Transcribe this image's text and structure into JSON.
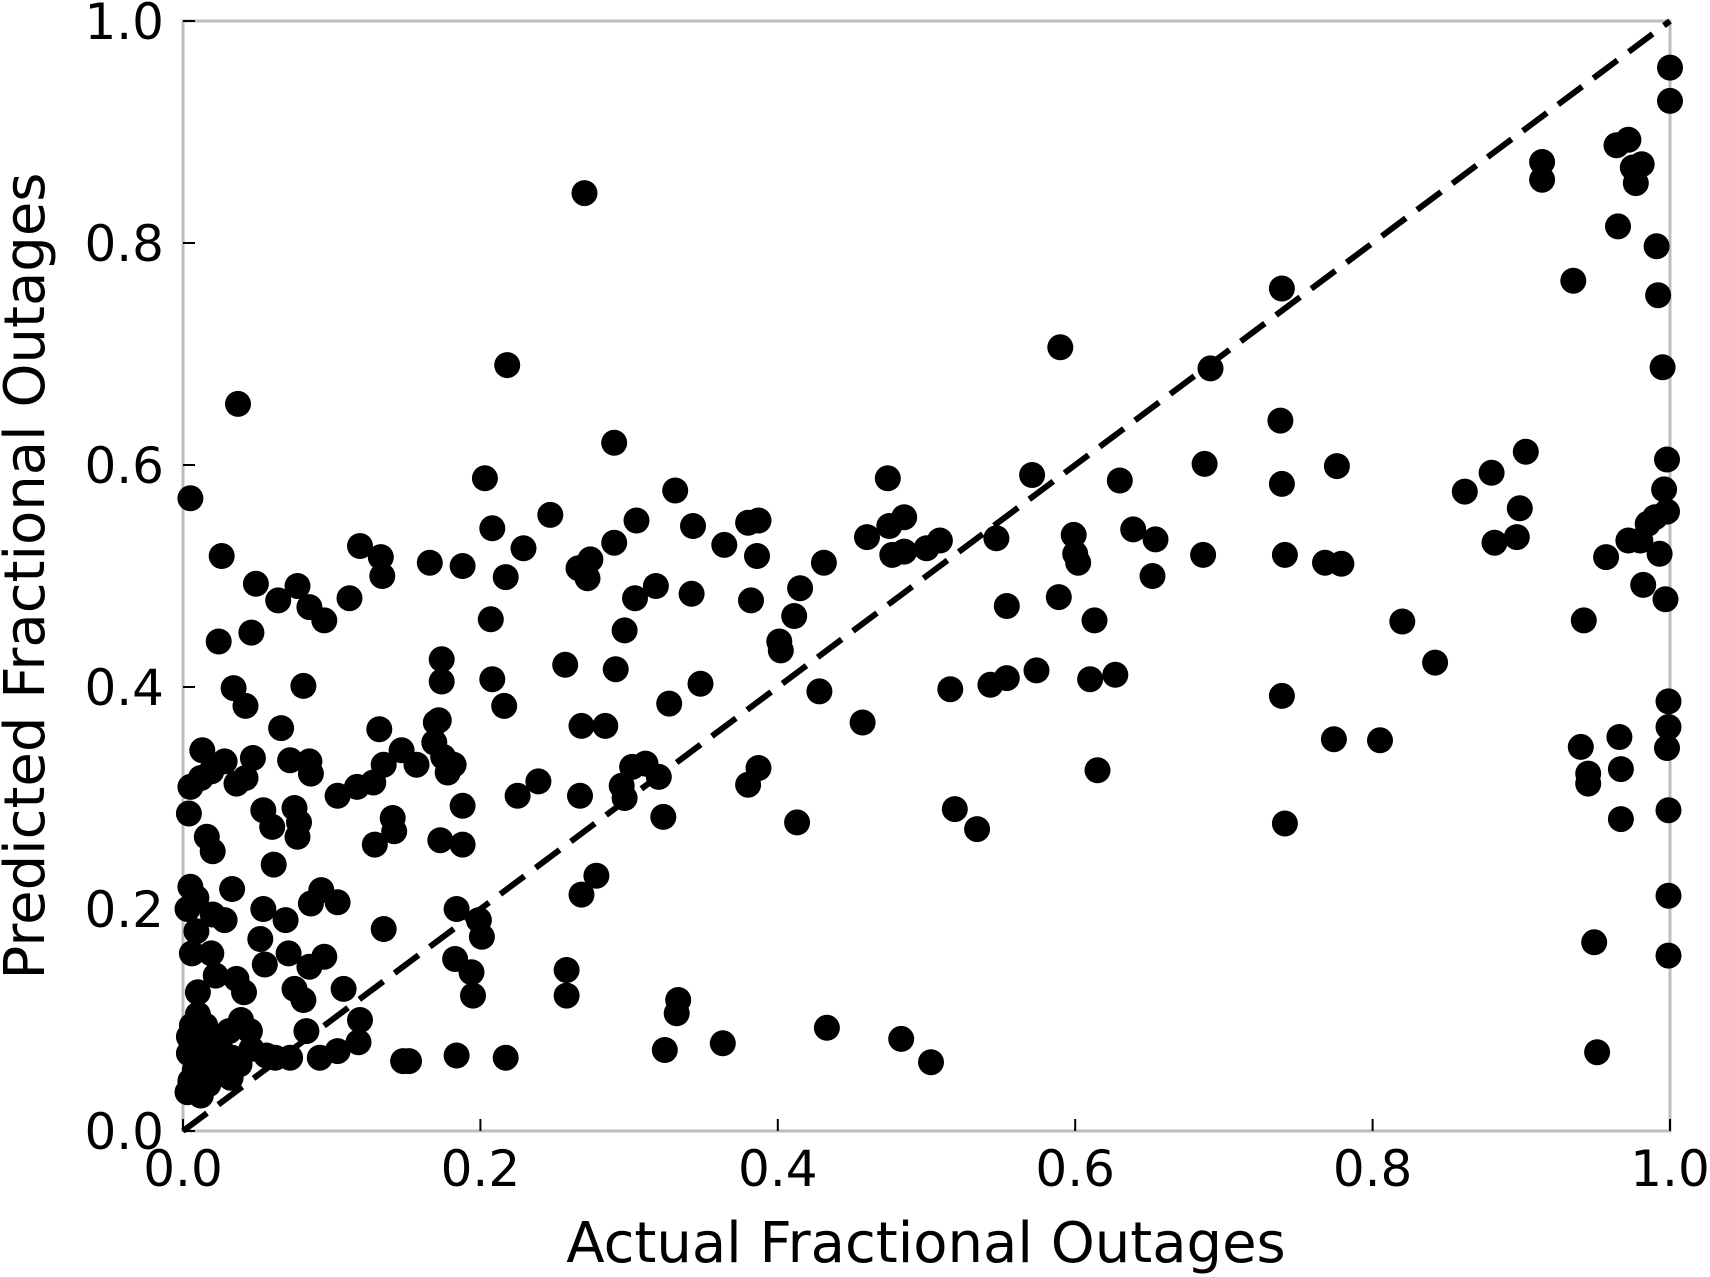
{
  "chart_data": {
    "type": "scatter",
    "title": "",
    "xlabel": "Actual Fractional Outages",
    "ylabel": "Predicted Fractional Outages",
    "xlim": [
      0.0,
      1.0
    ],
    "ylim": [
      0.0,
      1.0
    ],
    "xticks": [
      "0.0",
      "0.2",
      "0.4",
      "0.6",
      "0.8",
      "1.0"
    ],
    "yticks": [
      "0.0",
      "0.2",
      "0.4",
      "0.6",
      "0.8",
      "1.0"
    ],
    "grid": false,
    "legend": "none",
    "reference_line": {
      "style": "dashed",
      "from": [
        0.0,
        0.0
      ],
      "to": [
        1.0,
        1.0
      ]
    },
    "marker_color": "#000000",
    "series": [
      {
        "points": [
          [
            0.27,
            0.845
          ],
          [
            0.218,
            0.69
          ],
          [
            0.037,
            0.655
          ],
          [
            0.29,
            0.62
          ],
          [
            0.59,
            0.706
          ],
          [
            0.005,
            0.57
          ],
          [
            0.203,
            0.588
          ],
          [
            0.331,
            0.577
          ],
          [
            0.247,
            0.555
          ],
          [
            0.305,
            0.55
          ],
          [
            0.38,
            0.548
          ],
          [
            0.387,
            0.55
          ],
          [
            0.343,
            0.545
          ],
          [
            0.208,
            0.543
          ],
          [
            0.229,
            0.525
          ],
          [
            0.29,
            0.53
          ],
          [
            0.364,
            0.528
          ],
          [
            0.386,
            0.518
          ],
          [
            0.274,
            0.515
          ],
          [
            0.266,
            0.507
          ],
          [
            0.272,
            0.498
          ],
          [
            0.119,
            0.527
          ],
          [
            0.133,
            0.517
          ],
          [
            0.134,
            0.5
          ],
          [
            0.166,
            0.512
          ],
          [
            0.188,
            0.509
          ],
          [
            0.217,
            0.499
          ],
          [
            0.026,
            0.518
          ],
          [
            0.049,
            0.493
          ],
          [
            0.077,
            0.491
          ],
          [
            0.064,
            0.478
          ],
          [
            0.085,
            0.472
          ],
          [
            0.095,
            0.46
          ],
          [
            0.112,
            0.48
          ],
          [
            0.318,
            0.491
          ],
          [
            0.304,
            0.48
          ],
          [
            0.342,
            0.484
          ],
          [
            0.382,
            0.478
          ],
          [
            0.415,
            0.489
          ],
          [
            0.431,
            0.512
          ],
          [
            0.411,
            0.464
          ],
          [
            0.401,
            0.441
          ],
          [
            0.402,
            0.433
          ],
          [
            0.297,
            0.451
          ],
          [
            0.207,
            0.461
          ],
          [
            0.046,
            0.449
          ],
          [
            0.024,
            0.441
          ],
          [
            0.174,
            0.425
          ],
          [
            0.174,
            0.405
          ],
          [
            0.208,
            0.407
          ],
          [
            0.216,
            0.383
          ],
          [
            0.257,
            0.42
          ],
          [
            0.291,
            0.416
          ],
          [
            0.348,
            0.403
          ],
          [
            0.327,
            0.385
          ],
          [
            0.428,
            0.396
          ],
          [
            0.457,
            0.368
          ],
          [
            0.387,
            0.327
          ],
          [
            0.38,
            0.312
          ],
          [
            0.295,
            0.311
          ],
          [
            0.268,
            0.365
          ],
          [
            0.284,
            0.365
          ],
          [
            0.302,
            0.328
          ],
          [
            0.32,
            0.319
          ],
          [
            0.311,
            0.331
          ],
          [
            0.297,
            0.3
          ],
          [
            0.267,
            0.302
          ],
          [
            0.239,
            0.315
          ],
          [
            0.225,
            0.302
          ],
          [
            0.323,
            0.283
          ],
          [
            0.413,
            0.278
          ],
          [
            0.132,
            0.362
          ],
          [
            0.147,
            0.343
          ],
          [
            0.157,
            0.33
          ],
          [
            0.17,
            0.368
          ],
          [
            0.169,
            0.35
          ],
          [
            0.172,
            0.37
          ],
          [
            0.175,
            0.337
          ],
          [
            0.182,
            0.33
          ],
          [
            0.178,
            0.323
          ],
          [
            0.135,
            0.33
          ],
          [
            0.128,
            0.314
          ],
          [
            0.117,
            0.31
          ],
          [
            0.104,
            0.302
          ],
          [
            0.141,
            0.282
          ],
          [
            0.142,
            0.27
          ],
          [
            0.129,
            0.258
          ],
          [
            0.173,
            0.262
          ],
          [
            0.188,
            0.258
          ],
          [
            0.188,
            0.293
          ],
          [
            0.081,
            0.401
          ],
          [
            0.066,
            0.363
          ],
          [
            0.072,
            0.334
          ],
          [
            0.085,
            0.333
          ],
          [
            0.086,
            0.322
          ],
          [
            0.034,
            0.399
          ],
          [
            0.042,
            0.383
          ],
          [
            0.047,
            0.336
          ],
          [
            0.028,
            0.333
          ],
          [
            0.013,
            0.343
          ],
          [
            0.019,
            0.324
          ],
          [
            0.012,
            0.318
          ],
          [
            0.036,
            0.313
          ],
          [
            0.042,
            0.318
          ],
          [
            0.005,
            0.31
          ],
          [
            0.054,
            0.289
          ],
          [
            0.06,
            0.274
          ],
          [
            0.075,
            0.291
          ],
          [
            0.078,
            0.278
          ],
          [
            0.077,
            0.265
          ],
          [
            0.061,
            0.24
          ],
          [
            0.004,
            0.286
          ],
          [
            0.016,
            0.265
          ],
          [
            0.02,
            0.252
          ],
          [
            0.093,
            0.217
          ],
          [
            0.104,
            0.206
          ],
          [
            0.086,
            0.205
          ],
          [
            0.009,
            0.21
          ],
          [
            0.033,
            0.218
          ],
          [
            0.028,
            0.19
          ],
          [
            0.054,
            0.2
          ],
          [
            0.069,
            0.19
          ],
          [
            0.135,
            0.182
          ],
          [
            0.184,
            0.2
          ],
          [
            0.199,
            0.19
          ],
          [
            0.201,
            0.175
          ],
          [
            0.052,
            0.173
          ],
          [
            0.055,
            0.15
          ],
          [
            0.071,
            0.16
          ],
          [
            0.085,
            0.148
          ],
          [
            0.095,
            0.157
          ],
          [
            0.108,
            0.128
          ],
          [
            0.075,
            0.128
          ],
          [
            0.081,
            0.118
          ],
          [
            0.041,
            0.125
          ],
          [
            0.036,
            0.137
          ],
          [
            0.01,
            0.125
          ],
          [
            0.022,
            0.14
          ],
          [
            0.019,
            0.16
          ],
          [
            0.02,
            0.195
          ],
          [
            0.009,
            0.18
          ],
          [
            0.005,
            0.22
          ],
          [
            0.003,
            0.2
          ],
          [
            0.006,
            0.16
          ],
          [
            0.119,
            0.1
          ],
          [
            0.118,
            0.08
          ],
          [
            0.083,
            0.09
          ],
          [
            0.104,
            0.072
          ],
          [
            0.092,
            0.066
          ],
          [
            0.072,
            0.066
          ],
          [
            0.062,
            0.066
          ],
          [
            0.056,
            0.068
          ],
          [
            0.046,
            0.074
          ],
          [
            0.045,
            0.09
          ],
          [
            0.039,
            0.1
          ],
          [
            0.031,
            0.09
          ],
          [
            0.024,
            0.085
          ],
          [
            0.015,
            0.095
          ],
          [
            0.01,
            0.105
          ],
          [
            0.006,
            0.095
          ],
          [
            0.004,
            0.085
          ],
          [
            0.013,
            0.08
          ],
          [
            0.02,
            0.075
          ],
          [
            0.027,
            0.07
          ],
          [
            0.033,
            0.066
          ],
          [
            0.038,
            0.06
          ],
          [
            0.01,
            0.068
          ],
          [
            0.016,
            0.062
          ],
          [
            0.022,
            0.058
          ],
          [
            0.004,
            0.07
          ],
          [
            0.008,
            0.055
          ],
          [
            0.014,
            0.05
          ],
          [
            0.026,
            0.052
          ],
          [
            0.032,
            0.048
          ],
          [
            0.005,
            0.045
          ],
          [
            0.01,
            0.04
          ],
          [
            0.017,
            0.042
          ],
          [
            0.003,
            0.035
          ],
          [
            0.012,
            0.032
          ],
          [
            0.03,
            0.05
          ],
          [
            0.148,
            0.063
          ],
          [
            0.152,
            0.063
          ],
          [
            0.184,
            0.068
          ],
          [
            0.183,
            0.155
          ],
          [
            0.194,
            0.143
          ],
          [
            0.195,
            0.122
          ],
          [
            0.217,
            0.066
          ],
          [
            0.258,
            0.145
          ],
          [
            0.258,
            0.122
          ],
          [
            0.268,
            0.213
          ],
          [
            0.278,
            0.23
          ],
          [
            0.333,
            0.118
          ],
          [
            0.332,
            0.106
          ],
          [
            0.324,
            0.073
          ],
          [
            0.363,
            0.079
          ],
          [
            0.433,
            0.093
          ],
          [
            0.483,
            0.083
          ],
          [
            0.503,
            0.062
          ],
          [
            0.519,
            0.29
          ],
          [
            0.534,
            0.272
          ],
          [
            0.516,
            0.398
          ],
          [
            0.543,
            0.402
          ],
          [
            0.554,
            0.408
          ],
          [
            0.574,
            0.415
          ],
          [
            0.61,
            0.407
          ],
          [
            0.627,
            0.411
          ],
          [
            0.615,
            0.325
          ],
          [
            0.613,
            0.46
          ],
          [
            0.554,
            0.473
          ],
          [
            0.589,
            0.481
          ],
          [
            0.5,
            0.525
          ],
          [
            0.509,
            0.532
          ],
          [
            0.485,
            0.522
          ],
          [
            0.477,
            0.519
          ],
          [
            0.475,
            0.545
          ],
          [
            0.485,
            0.553
          ],
          [
            0.474,
            0.588
          ],
          [
            0.46,
            0.535
          ],
          [
            0.547,
            0.534
          ],
          [
            0.571,
            0.591
          ],
          [
            0.599,
            0.537
          ],
          [
            0.6,
            0.52
          ],
          [
            0.602,
            0.512
          ],
          [
            0.63,
            0.586
          ],
          [
            0.639,
            0.542
          ],
          [
            0.654,
            0.533
          ],
          [
            0.652,
            0.5
          ],
          [
            0.686,
            0.519
          ],
          [
            0.687,
            0.601
          ],
          [
            0.691,
            0.687
          ],
          [
            0.739,
            0.759
          ],
          [
            0.738,
            0.64
          ],
          [
            0.739,
            0.583
          ],
          [
            0.741,
            0.519
          ],
          [
            0.739,
            0.392
          ],
          [
            0.741,
            0.277
          ],
          [
            0.768,
            0.512
          ],
          [
            0.779,
            0.511
          ],
          [
            0.776,
            0.599
          ],
          [
            0.774,
            0.353
          ],
          [
            0.805,
            0.352
          ],
          [
            0.82,
            0.459
          ],
          [
            0.842,
            0.422
          ],
          [
            0.862,
            0.576
          ],
          [
            0.88,
            0.593
          ],
          [
            0.882,
            0.53
          ],
          [
            0.897,
            0.535
          ],
          [
            0.899,
            0.561
          ],
          [
            0.903,
            0.612
          ],
          [
            0.914,
            0.873
          ],
          [
            0.914,
            0.857
          ],
          [
            0.935,
            0.766
          ],
          [
            0.94,
            0.346
          ],
          [
            0.945,
            0.322
          ],
          [
            0.945,
            0.313
          ],
          [
            0.942,
            0.46
          ],
          [
            0.949,
            0.17
          ],
          [
            0.951,
            0.071
          ],
          [
            0.957,
            0.517
          ],
          [
            0.965,
            0.815
          ],
          [
            0.964,
            0.888
          ],
          [
            0.972,
            0.893
          ],
          [
            0.975,
            0.868
          ],
          [
            0.977,
            0.854
          ],
          [
            0.981,
            0.871
          ],
          [
            0.991,
            0.797
          ],
          [
            0.992,
            0.753
          ],
          [
            0.995,
            0.688
          ],
          [
            0.998,
            0.605
          ],
          [
            0.996,
            0.578
          ],
          [
            0.998,
            0.558
          ],
          [
            0.99,
            0.553
          ],
          [
            0.985,
            0.547
          ],
          [
            0.98,
            0.532
          ],
          [
            0.972,
            0.532
          ],
          [
            0.993,
            0.52
          ],
          [
            0.997,
            0.479
          ],
          [
            0.982,
            0.492
          ],
          [
            0.966,
            0.355
          ],
          [
            0.967,
            0.326
          ],
          [
            0.967,
            0.281
          ],
          [
            0.999,
            0.387
          ],
          [
            0.999,
            0.364
          ],
          [
            0.998,
            0.345
          ],
          [
            0.999,
            0.289
          ],
          [
            0.999,
            0.212
          ],
          [
            0.999,
            0.158
          ],
          [
            1.0,
            0.958
          ],
          [
            1.0,
            0.928
          ]
        ]
      }
    ]
  }
}
